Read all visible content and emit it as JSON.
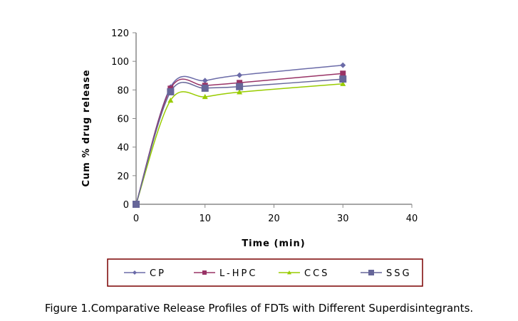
{
  "chart_data": {
    "type": "line",
    "title": "",
    "xlabel": "Time (min)",
    "ylabel": "Cum % drug release",
    "xlim": [
      0,
      40
    ],
    "ylim": [
      0,
      120
    ],
    "xticks": [
      0,
      10,
      20,
      30,
      40
    ],
    "yticks": [
      0,
      20,
      40,
      60,
      80,
      100,
      120
    ],
    "grid": false,
    "legend_position": "bottom",
    "x": [
      0,
      5,
      10,
      15,
      30
    ],
    "series": [
      {
        "name": "CP",
        "values": [
          0,
          82,
          86.5,
          90.3,
          97.3
        ],
        "color": "#6b6ba8",
        "marker": "diamond"
      },
      {
        "name": "L-HPC",
        "values": [
          0,
          81,
          83,
          85,
          91.5
        ],
        "color": "#993366",
        "marker": "square"
      },
      {
        "name": "CCS",
        "values": [
          0,
          72.7,
          75.2,
          78.5,
          84.3
        ],
        "color": "#99cc00",
        "marker": "triangle"
      },
      {
        "name": "SSG",
        "values": [
          0,
          78.7,
          81.2,
          82.3,
          87.6
        ],
        "color": "#666699",
        "marker": "square"
      }
    ]
  },
  "caption": "Figure 1.Comparative Release Profiles of FDTs with Different Superdisintegrants."
}
